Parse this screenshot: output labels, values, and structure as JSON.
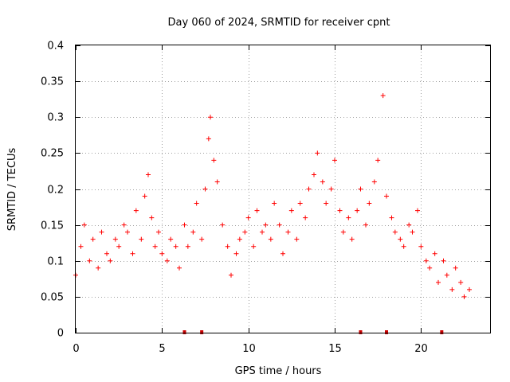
{
  "chart_data": {
    "type": "scatter",
    "title": "Day 060 of 2024, SRMTID for receiver cpnt",
    "xlabel": "GPS time / hours",
    "ylabel": "SRMTID / TECUs",
    "xlim": [
      0,
      24
    ],
    "ylim": [
      0,
      0.4
    ],
    "x_ticks": [
      0,
      5,
      10,
      15,
      20
    ],
    "x_tick_labels": [
      "0",
      "5",
      "10",
      "15",
      "20"
    ],
    "y_ticks": [
      0,
      0.05,
      0.1,
      0.15,
      0.2,
      0.25,
      0.3,
      0.35,
      0.4
    ],
    "y_tick_labels": [
      "0",
      "0.05",
      "0.1",
      "0.15",
      "0.2",
      "0.25",
      "0.3",
      "0.35",
      "0.4"
    ],
    "grid": true,
    "marker": "+",
    "color": "#ff0000",
    "data_gaps_hours": [
      6.3,
      7.3,
      16.5,
      18.0,
      21.2
    ],
    "gap_color": "#cc0000",
    "series": [
      {
        "name": "SRMTID",
        "x": [
          0.0,
          0.3,
          0.5,
          0.8,
          1.0,
          1.3,
          1.5,
          1.8,
          2.0,
          2.3,
          2.5,
          2.8,
          3.0,
          3.3,
          3.5,
          3.8,
          4.0,
          4.2,
          4.4,
          4.6,
          4.8,
          5.0,
          5.3,
          5.5,
          5.8,
          6.0,
          6.3,
          6.5,
          6.8,
          7.0,
          7.3,
          7.5,
          7.7,
          7.8,
          8.0,
          8.2,
          8.5,
          8.8,
          9.0,
          9.3,
          9.5,
          9.8,
          10.0,
          10.3,
          10.5,
          10.8,
          11.0,
          11.3,
          11.5,
          11.8,
          12.0,
          12.3,
          12.5,
          12.8,
          13.0,
          13.3,
          13.5,
          13.8,
          14.0,
          14.3,
          14.5,
          14.8,
          15.0,
          15.3,
          15.5,
          15.8,
          16.0,
          16.3,
          16.5,
          16.8,
          17.0,
          17.3,
          17.5,
          17.8,
          18.0,
          18.3,
          18.5,
          18.8,
          19.0,
          19.3,
          19.5,
          19.8,
          20.0,
          20.3,
          20.5,
          20.8,
          21.0,
          21.3,
          21.5,
          21.8,
          22.0,
          22.3,
          22.5,
          22.8
        ],
        "y": [
          0.08,
          0.12,
          0.15,
          0.1,
          0.13,
          0.09,
          0.14,
          0.11,
          0.1,
          0.13,
          0.12,
          0.15,
          0.14,
          0.11,
          0.17,
          0.13,
          0.19,
          0.22,
          0.16,
          0.12,
          0.14,
          0.11,
          0.1,
          0.13,
          0.12,
          0.09,
          0.15,
          0.12,
          0.14,
          0.18,
          0.13,
          0.2,
          0.27,
          0.3,
          0.24,
          0.21,
          0.15,
          0.12,
          0.08,
          0.11,
          0.13,
          0.14,
          0.16,
          0.12,
          0.17,
          0.14,
          0.15,
          0.13,
          0.18,
          0.15,
          0.11,
          0.14,
          0.17,
          0.13,
          0.18,
          0.16,
          0.2,
          0.22,
          0.25,
          0.21,
          0.18,
          0.2,
          0.24,
          0.17,
          0.14,
          0.16,
          0.13,
          0.17,
          0.2,
          0.15,
          0.18,
          0.21,
          0.24,
          0.33,
          0.19,
          0.16,
          0.14,
          0.13,
          0.12,
          0.15,
          0.14,
          0.17,
          0.12,
          0.1,
          0.09,
          0.11,
          0.07,
          0.1,
          0.08,
          0.06,
          0.09,
          0.07,
          0.05,
          0.06
        ]
      }
    ]
  }
}
